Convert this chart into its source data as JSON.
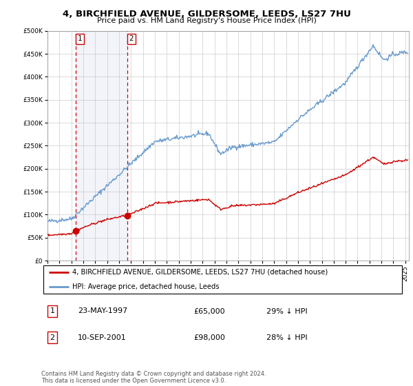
{
  "title1": "4, BIRCHFIELD AVENUE, GILDERSOME, LEEDS, LS27 7HU",
  "title2": "Price paid vs. HM Land Registry's House Price Index (HPI)",
  "sale1_year": 1997.39,
  "sale1_price": 65000,
  "sale2_year": 2001.7,
  "sale2_price": 98000,
  "hpi_color": "#6699cc",
  "sale_color": "#cc0000",
  "legend_entry1": "4, BIRCHFIELD AVENUE, GILDERSOME, LEEDS, LS27 7HU (detached house)",
  "legend_entry2": "HPI: Average price, detached house, Leeds",
  "table_row1": [
    "1",
    "23-MAY-1997",
    "£65,000",
    "29% ↓ HPI"
  ],
  "table_row2": [
    "2",
    "10-SEP-2001",
    "£98,000",
    "28% ↓ HPI"
  ],
  "footer": "Contains HM Land Registry data © Crown copyright and database right 2024.\nThis data is licensed under the Open Government Licence v3.0.",
  "ylim_min": 0,
  "ylim_max": 500000,
  "xlim_min": 1995,
  "xlim_max": 2025.3
}
